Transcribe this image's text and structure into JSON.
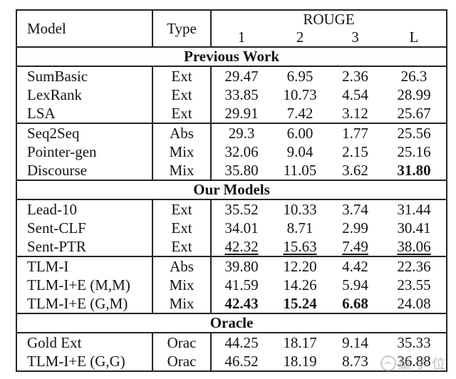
{
  "header": {
    "model": "Model",
    "type": "Type",
    "rouge_label": "ROUGE",
    "sub": [
      "1",
      "2",
      "3",
      "L"
    ]
  },
  "section_titles": [
    "Previous Work",
    "Our Models",
    "Oracle"
  ],
  "rows": [
    {
      "model": "SumBasic",
      "type": "Ext",
      "r1": "29.47",
      "r2": "6.95",
      "r3": "2.36",
      "rl": "26.3"
    },
    {
      "model": "LexRank",
      "type": "Ext",
      "r1": "33.85",
      "r2": "10.73",
      "r3": "4.54",
      "rl": "28.99"
    },
    {
      "model": "LSA",
      "type": "Ext",
      "r1": "29.91",
      "r2": "7.42",
      "r3": "3.12",
      "rl": "25.67"
    },
    {
      "model": "Seq2Seq",
      "type": "Abs",
      "r1": "29.3",
      "r2": "6.00",
      "r3": "1.77",
      "rl": "25.56"
    },
    {
      "model": "Pointer-gen",
      "type": "Mix",
      "r1": "32.06",
      "r2": "9.04",
      "r3": "2.15",
      "rl": "25.16"
    },
    {
      "model": "Discourse",
      "type": "Mix",
      "r1": "35.80",
      "r2": "11.05",
      "r3": "3.62",
      "rl": "31.80"
    },
    {
      "model": "Lead-10",
      "type": "Ext",
      "r1": "35.52",
      "r2": "10.33",
      "r3": "3.74",
      "rl": "31.44"
    },
    {
      "model": "Sent-CLF",
      "type": "Ext",
      "r1": "34.01",
      "r2": "8.71",
      "r3": "2.99",
      "rl": "30.41"
    },
    {
      "model": "Sent-PTR",
      "type": "Ext",
      "r1": "42.32",
      "r2": "15.63",
      "r3": "7.49",
      "rl": "38.06"
    },
    {
      "model": "TLM-I",
      "type": "Abs",
      "r1": "39.80",
      "r2": "12.20",
      "r3": "4.42",
      "rl": "22.36"
    },
    {
      "model": "TLM-I+E (M,M)",
      "type": "Mix",
      "r1": "41.59",
      "r2": "14.26",
      "r3": "5.94",
      "rl": "23.55"
    },
    {
      "model": "TLM-I+E (G,M)",
      "type": "Mix",
      "r1": "42.43",
      "r2": "15.24",
      "r3": "6.68",
      "rl": "24.08"
    },
    {
      "model": "Gold Ext",
      "type": "Orac",
      "r1": "44.25",
      "r2": "18.17",
      "r3": "9.14",
      "rl": "35.33"
    },
    {
      "model": "TLM-I+E (G,G)",
      "type": "Orac",
      "r1": "46.52",
      "r2": "18.19",
      "r3": "8.73",
      "rl": "36.88"
    }
  ],
  "watermark": {
    "text": "量子位"
  },
  "colors": {
    "border": "#242424",
    "text": "#141414",
    "watermark": "#9b9b9b",
    "background": "#ffffff"
  }
}
